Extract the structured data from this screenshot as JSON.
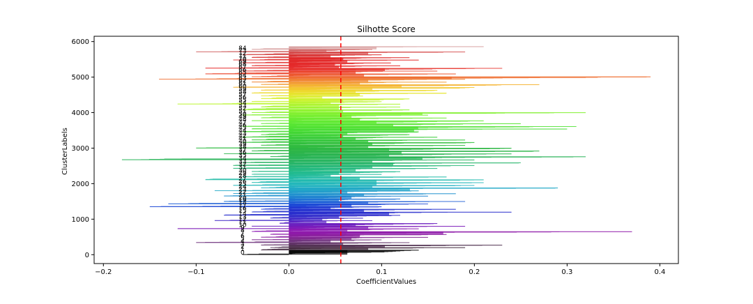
{
  "chart_data": {
    "type": "bar",
    "orientation": "horizontal",
    "title": "Silhotte Score",
    "xlabel": "CoefficientValues",
    "ylabel": "ClusterLabels",
    "xlim": [
      -0.21,
      0.42
    ],
    "ylim": [
      -250,
      6150
    ],
    "xticks": [
      -0.2,
      -0.1,
      0.0,
      0.1,
      0.2,
      0.3,
      0.4
    ],
    "xtick_labels": [
      "−0.2",
      "−0.1",
      "0.0",
      "0.1",
      "0.2",
      "0.3",
      "0.4"
    ],
    "yticks": [
      0,
      1000,
      2000,
      3000,
      4000,
      5000,
      6000
    ],
    "ytick_labels": [
      "0",
      "1000",
      "2000",
      "3000",
      "4000",
      "5000",
      "6000"
    ],
    "grid": false,
    "average_silhouette": 0.056,
    "average_line_color": "#ff0000",
    "cluster_label_x": -0.05,
    "clusters": [
      {
        "label": "0",
        "start": 0,
        "size": 130,
        "color": "#000000",
        "max": 0.14,
        "min": -0.05
      },
      {
        "label": "1",
        "start": 130,
        "size": 70,
        "color": "#3a2036",
        "max": 0.19,
        "min": -0.03
      },
      {
        "label": "2",
        "start": 200,
        "size": 70,
        "color": "#4a2a4a",
        "max": 0.23,
        "min": -0.02
      },
      {
        "label": "3",
        "start": 270,
        "size": 70,
        "color": "#5a2a60",
        "max": 0.13,
        "min": -0.03
      },
      {
        "label": "4",
        "start": 340,
        "size": 80,
        "color": "#6a2a78",
        "max": 0.1,
        "min": -0.1
      },
      {
        "label": "5",
        "start": 420,
        "size": 70,
        "color": "#7a208a",
        "max": 0.15,
        "min": -0.04
      },
      {
        "label": "6",
        "start": 490,
        "size": 80,
        "color": "#84149a",
        "max": 0.17,
        "min": -0.03
      },
      {
        "label": "7",
        "start": 570,
        "size": 80,
        "color": "#8a10a6",
        "max": 0.37,
        "min": -0.02
      },
      {
        "label": "8",
        "start": 650,
        "size": 80,
        "color": "#8810b0",
        "max": 0.14,
        "min": -0.04
      },
      {
        "label": "9",
        "start": 730,
        "size": 70,
        "color": "#7812b6",
        "max": 0.19,
        "min": -0.12
      },
      {
        "label": "10",
        "start": 800,
        "size": 80,
        "color": "#6616bc",
        "max": 0.16,
        "min": -0.04
      },
      {
        "label": "11",
        "start": 880,
        "size": 80,
        "color": "#521bc2",
        "max": 0.09,
        "min": -0.01
      },
      {
        "label": "12",
        "start": 960,
        "size": 70,
        "color": "#3a1fc6",
        "max": 0.08,
        "min": -0.08
      },
      {
        "label": "13",
        "start": 1030,
        "size": 80,
        "color": "#2a22c8",
        "max": 0.12,
        "min": -0.02
      },
      {
        "label": "14",
        "start": 1110,
        "size": 90,
        "color": "#1e24ca",
        "max": 0.24,
        "min": -0.07
      },
      {
        "label": "15",
        "start": 1200,
        "size": 80,
        "color": "#1a28cc",
        "max": 0.18,
        "min": -0.04
      },
      {
        "label": "16",
        "start": 1280,
        "size": 70,
        "color": "#1630d0",
        "max": 0.1,
        "min": -0.03
      },
      {
        "label": "17",
        "start": 1350,
        "size": 80,
        "color": "#1240d4",
        "max": 0.15,
        "min": -0.15
      },
      {
        "label": "18",
        "start": 1430,
        "size": 70,
        "color": "#1256d4",
        "max": 0.19,
        "min": -0.13
      },
      {
        "label": "19",
        "start": 1500,
        "size": 70,
        "color": "#146ad2",
        "max": 0.12,
        "min": -0.07
      },
      {
        "label": "20",
        "start": 1570,
        "size": 80,
        "color": "#167ccf",
        "max": 0.15,
        "min": -0.05
      },
      {
        "label": "21",
        "start": 1650,
        "size": 70,
        "color": "#168ccc",
        "max": 0.18,
        "min": -0.07
      },
      {
        "label": "22",
        "start": 1720,
        "size": 80,
        "color": "#1898c8",
        "max": 0.14,
        "min": -0.06
      },
      {
        "label": "23",
        "start": 1800,
        "size": 80,
        "color": "#18a4c4",
        "max": 0.29,
        "min": -0.08
      },
      {
        "label": "24",
        "start": 1880,
        "size": 70,
        "color": "#18aebe",
        "max": 0.2,
        "min": -0.03
      },
      {
        "label": "25",
        "start": 1950,
        "size": 80,
        "color": "#18b4b6",
        "max": 0.21,
        "min": -0.06
      },
      {
        "label": "26",
        "start": 2030,
        "size": 80,
        "color": "#18b6ac",
        "max": 0.21,
        "min": -0.04
      },
      {
        "label": "27",
        "start": 2110,
        "size": 80,
        "color": "#18b8a2",
        "max": 0.17,
        "min": -0.09
      },
      {
        "label": "28",
        "start": 2190,
        "size": 70,
        "color": "#18b896",
        "max": 0.1,
        "min": -0.05
      },
      {
        "label": "29",
        "start": 2260,
        "size": 80,
        "color": "#18b88a",
        "max": 0.12,
        "min": -0.04
      },
      {
        "label": "30",
        "start": 2340,
        "size": 90,
        "color": "#1ab67c",
        "max": 0.16,
        "min": -0.04
      },
      {
        "label": "31",
        "start": 2430,
        "size": 80,
        "color": "#1ab470",
        "max": 0.2,
        "min": -0.06
      },
      {
        "label": "32",
        "start": 2510,
        "size": 80,
        "color": "#1cb264",
        "max": 0.25,
        "min": -0.06
      },
      {
        "label": "33",
        "start": 2590,
        "size": 80,
        "color": "#1eb05a",
        "max": 0.2,
        "min": -0.05
      },
      {
        "label": "34",
        "start": 2670,
        "size": 90,
        "color": "#1fb050",
        "max": 0.32,
        "min": -0.18
      },
      {
        "label": "35",
        "start": 2760,
        "size": 80,
        "color": "#20b048",
        "max": 0.24,
        "min": -0.02
      },
      {
        "label": "36",
        "start": 2840,
        "size": 80,
        "color": "#22b242",
        "max": 0.27,
        "min": -0.07
      },
      {
        "label": "37",
        "start": 2920,
        "size": 80,
        "color": "#24b43c",
        "max": 0.24,
        "min": -0.04
      },
      {
        "label": "38",
        "start": 3000,
        "size": 80,
        "color": "#26b838",
        "max": 0.19,
        "min": -0.1
      },
      {
        "label": "39",
        "start": 3080,
        "size": 80,
        "color": "#28bc34",
        "max": 0.2,
        "min": -0.03
      },
      {
        "label": "40",
        "start": 3160,
        "size": 70,
        "color": "#2ac232",
        "max": 0.19,
        "min": -0.05
      },
      {
        "label": "41",
        "start": 3230,
        "size": 80,
        "color": "#2ec830",
        "max": 0.16,
        "min": -0.04
      },
      {
        "label": "42",
        "start": 3310,
        "size": 70,
        "color": "#34ce2e",
        "max": 0.13,
        "min": -0.05
      },
      {
        "label": "43",
        "start": 3380,
        "size": 80,
        "color": "#3ad42c",
        "max": 0.14,
        "min": -0.03
      },
      {
        "label": "44",
        "start": 3460,
        "size": 80,
        "color": "#40da2c",
        "max": 0.3,
        "min": -0.05
      },
      {
        "label": "45",
        "start": 3540,
        "size": 70,
        "color": "#48e02a",
        "max": 0.31,
        "min": -0.04
      },
      {
        "label": "46",
        "start": 3610,
        "size": 80,
        "color": "#50e42a",
        "max": 0.25,
        "min": -0.05
      },
      {
        "label": "47",
        "start": 3690,
        "size": 80,
        "color": "#5ae82a",
        "max": 0.21,
        "min": -0.03
      },
      {
        "label": "48",
        "start": 3770,
        "size": 80,
        "color": "#64ea28",
        "max": 0.17,
        "min": -0.04
      },
      {
        "label": "49",
        "start": 3850,
        "size": 80,
        "color": "#70ee28",
        "max": 0.15,
        "min": -0.03
      },
      {
        "label": "50",
        "start": 3930,
        "size": 70,
        "color": "#7cf028",
        "max": 0.32,
        "min": -0.05
      },
      {
        "label": "51",
        "start": 4000,
        "size": 80,
        "color": "#8af228",
        "max": 0.13,
        "min": -0.04
      },
      {
        "label": "52",
        "start": 4080,
        "size": 80,
        "color": "#98f428",
        "max": 0.12,
        "min": -0.05
      },
      {
        "label": "53",
        "start": 4160,
        "size": 80,
        "color": "#a8f428",
        "max": 0.12,
        "min": -0.03
      },
      {
        "label": "54",
        "start": 4240,
        "size": 70,
        "color": "#b8f428",
        "max": 0.1,
        "min": -0.12
      },
      {
        "label": "55",
        "start": 4310,
        "size": 80,
        "color": "#c8f228",
        "max": 0.13,
        "min": -0.04
      },
      {
        "label": "56",
        "start": 4390,
        "size": 80,
        "color": "#d8ee26",
        "max": 0.08,
        "min": -0.03
      },
      {
        "label": "57",
        "start": 4470,
        "size": 80,
        "color": "#e4e424",
        "max": 0.17,
        "min": -0.03
      },
      {
        "label": "58",
        "start": 4550,
        "size": 80,
        "color": "#ecd824",
        "max": 0.16,
        "min": -0.04
      },
      {
        "label": "59",
        "start": 4630,
        "size": 80,
        "color": "#f2c626",
        "max": 0.2,
        "min": -0.03
      },
      {
        "label": "60",
        "start": 4710,
        "size": 80,
        "color": "#f4b028",
        "max": 0.27,
        "min": -0.06
      },
      {
        "label": "61",
        "start": 4790,
        "size": 70,
        "color": "#f2982a",
        "max": 0.17,
        "min": -0.03
      },
      {
        "label": "62",
        "start": 4860,
        "size": 80,
        "color": "#f0802a",
        "max": 0.19,
        "min": -0.04
      },
      {
        "label": "63",
        "start": 4940,
        "size": 70,
        "color": "#ee6828",
        "max": 0.39,
        "min": -0.14
      },
      {
        "label": "64",
        "start": 5010,
        "size": 80,
        "color": "#ec5024",
        "max": 0.18,
        "min": -0.04
      },
      {
        "label": "65",
        "start": 5090,
        "size": 80,
        "color": "#ea3c22",
        "max": 0.16,
        "min": -0.09
      },
      {
        "label": "66",
        "start": 5170,
        "size": 80,
        "color": "#e62a22",
        "max": 0.23,
        "min": -0.05
      },
      {
        "label": "67",
        "start": 5250,
        "size": 70,
        "color": "#e42222",
        "max": 0.12,
        "min": -0.09
      },
      {
        "label": "68",
        "start": 5320,
        "size": 80,
        "color": "#e22020",
        "max": 0.11,
        "min": -0.04
      },
      {
        "label": "69",
        "start": 5400,
        "size": 80,
        "color": "#e02020",
        "max": 0.14,
        "min": -0.05
      },
      {
        "label": "70",
        "start": 5480,
        "size": 70,
        "color": "#de2020",
        "max": 0.13,
        "min": -0.06
      },
      {
        "label": "71",
        "start": 5550,
        "size": 80,
        "color": "#d82a2a",
        "max": 0.1,
        "min": -0.04
      },
      {
        "label": "72",
        "start": 5630,
        "size": 80,
        "color": "#d44040",
        "max": 0.19,
        "min": -0.05
      },
      {
        "label": "73",
        "start": 5710,
        "size": 70,
        "color": "#d06060",
        "max": 0.09,
        "min": -0.1
      },
      {
        "label": "84",
        "start": 5780,
        "size": 80,
        "color": "#d8a0a0",
        "max": 0.21,
        "min": -0.04
      }
    ]
  }
}
